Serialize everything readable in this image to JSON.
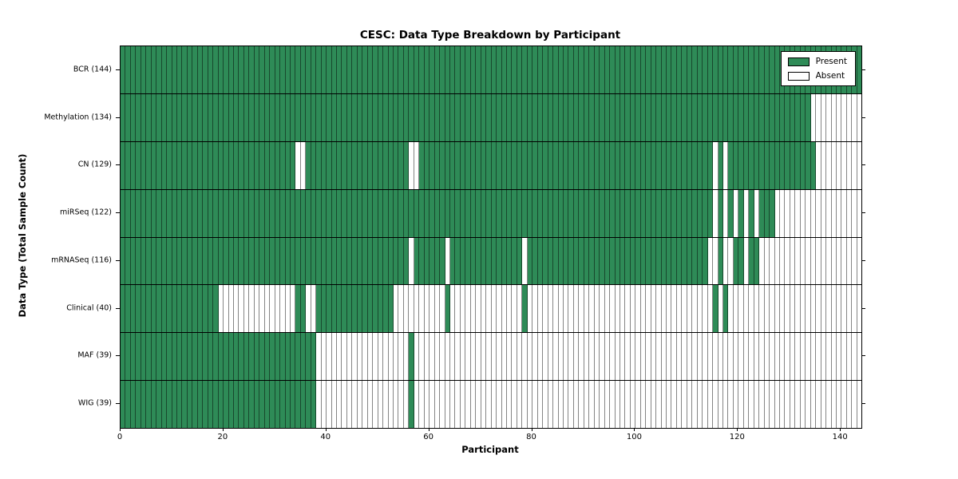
{
  "title": "CESC: Data Type Breakdown by Participant",
  "xlabel": "Participant",
  "ylabel": "Data Type (Total Sample Count)",
  "legend": {
    "present_label": "Present",
    "absent_label": "Absent"
  },
  "colors": {
    "present": "#2e8b57",
    "absent": "#ffffff",
    "frame": "#000000"
  },
  "chart_data": {
    "type": "heatmap",
    "title": "CESC: Data Type Breakdown by Participant",
    "xlabel": "Participant",
    "ylabel": "Data Type (Total Sample Count)",
    "xlim": [
      0,
      144
    ],
    "n_participants": 144,
    "x_ticks": [
      0,
      20,
      40,
      60,
      80,
      100,
      120,
      140
    ],
    "legend_position": "upper right",
    "grid": "cell-borders",
    "rows": [
      {
        "label": "BCR (144)",
        "data_type": "BCR",
        "total_sample_count": 144,
        "present_ranges": [
          [
            0,
            143
          ]
        ]
      },
      {
        "label": "Methylation (134)",
        "data_type": "Methylation",
        "total_sample_count": 134,
        "present_ranges": [
          [
            0,
            133
          ]
        ]
      },
      {
        "label": "CN (129)",
        "data_type": "CN",
        "total_sample_count": 129,
        "present_ranges": [
          [
            0,
            33
          ],
          [
            36,
            55
          ],
          [
            58,
            114
          ],
          [
            116,
            116
          ],
          [
            118,
            134
          ]
        ]
      },
      {
        "label": "miRSeq (122)",
        "data_type": "miRSeq",
        "total_sample_count": 122,
        "present_ranges": [
          [
            0,
            114
          ],
          [
            116,
            116
          ],
          [
            118,
            118
          ],
          [
            120,
            120
          ],
          [
            122,
            122
          ],
          [
            124,
            126
          ]
        ]
      },
      {
        "label": "mRNASeq (116)",
        "data_type": "mRNASeq",
        "total_sample_count": 116,
        "present_ranges": [
          [
            0,
            55
          ],
          [
            57,
            62
          ],
          [
            64,
            77
          ],
          [
            79,
            113
          ],
          [
            116,
            116
          ],
          [
            119,
            120
          ],
          [
            122,
            123
          ]
        ]
      },
      {
        "label": "Clinical (40)",
        "data_type": "Clinical",
        "total_sample_count": 40,
        "present_ranges": [
          [
            0,
            18
          ],
          [
            34,
            35
          ],
          [
            38,
            52
          ],
          [
            63,
            63
          ],
          [
            78,
            78
          ],
          [
            115,
            115
          ],
          [
            117,
            117
          ]
        ]
      },
      {
        "label": "MAF (39)",
        "data_type": "MAF",
        "total_sample_count": 39,
        "present_ranges": [
          [
            0,
            37
          ],
          [
            56,
            56
          ]
        ]
      },
      {
        "label": "WIG (39)",
        "data_type": "WIG",
        "total_sample_count": 39,
        "present_ranges": [
          [
            0,
            37
          ],
          [
            56,
            56
          ]
        ]
      }
    ]
  }
}
